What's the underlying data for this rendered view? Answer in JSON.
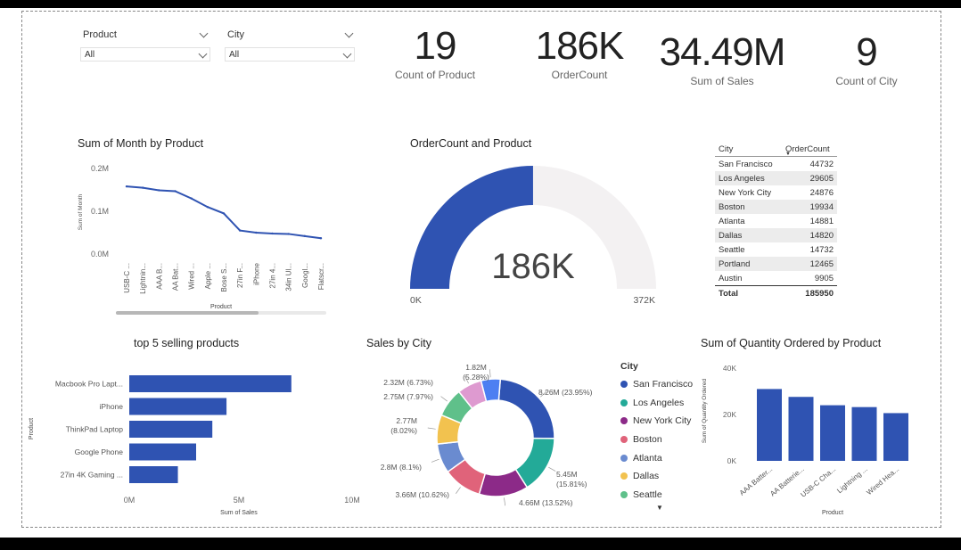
{
  "slicers": [
    {
      "title": "Product",
      "value": "All"
    },
    {
      "title": "City",
      "value": "All"
    }
  ],
  "kpis": [
    {
      "value": "19",
      "label": "Count of Product"
    },
    {
      "value": "186K",
      "label": "OrderCount"
    },
    {
      "value": "34.49M",
      "label": "Sum of Sales"
    },
    {
      "value": "9",
      "label": "Count of City"
    }
  ],
  "colors": {
    "primary": "#2f53b2",
    "gauge_track": "#f3f1f2"
  },
  "chart_data": [
    {
      "id": "month_by_product",
      "type": "line",
      "title": "Sum of Month by Product",
      "xlabel": "Product",
      "ylabel": "Sum of Month",
      "yticks": [
        "0.2M",
        "0.1M",
        "0.0M"
      ],
      "ylim": [
        0,
        200000
      ],
      "categories": [
        "USB-C ...",
        "Lightnin...",
        "AAA B...",
        "AA Bat...",
        "Wired ...",
        "Apple ...",
        "Bose S...",
        "27in F...",
        "iPhone",
        "27in 4...",
        "34in Ul...",
        "Googl...",
        "Flatscr..."
      ],
      "values": [
        158000,
        155000,
        149000,
        147000,
        130000,
        110000,
        95000,
        55000,
        50000,
        48000,
        47000,
        42000,
        37000
      ]
    },
    {
      "id": "ordercount_gauge",
      "type": "gauge",
      "title": "OrderCount and Product",
      "value": 185950,
      "value_label": "186K",
      "min": 0,
      "max": 372000,
      "min_label": "0K",
      "max_label": "372K"
    },
    {
      "id": "city_table",
      "type": "table",
      "columns": [
        "City",
        "OrderCount"
      ],
      "rows": [
        [
          "San Francisco",
          "44732"
        ],
        [
          "Los Angeles",
          "29605"
        ],
        [
          "New York City",
          "24876"
        ],
        [
          "Boston",
          "19934"
        ],
        [
          "Atlanta",
          "14881"
        ],
        [
          "Dallas",
          "14820"
        ],
        [
          "Seattle",
          "14732"
        ],
        [
          "Portland",
          "12465"
        ],
        [
          "Austin",
          "9905"
        ]
      ],
      "total_label": "Total",
      "total": "185950"
    },
    {
      "id": "top5",
      "type": "bar",
      "title": "top 5 selling products",
      "xlabel": "Sum of Sales",
      "ylabel": "Product",
      "categories": [
        "Macbook Pro Lapt...",
        "iPhone",
        "ThinkPad Laptop",
        "Google Phone",
        "27in 4K Gaming ..."
      ],
      "values": [
        8000000,
        4800000,
        4100000,
        3300000,
        2400000
      ],
      "xticks": [
        "0M",
        "5M",
        "10M"
      ],
      "xlim": [
        0,
        11000000
      ]
    },
    {
      "id": "sales_by_city",
      "type": "pie",
      "title": "Sales by City",
      "legend_title": "City",
      "legend": [
        "San Francisco",
        "Los Angeles",
        "New York City",
        "Boston",
        "Atlanta",
        "Dallas",
        "Seattle"
      ],
      "slices": [
        {
          "name": "San Francisco",
          "value": 8.26,
          "color": "#2f53b2",
          "l1": "8.26M (23.95%)",
          "l2": ""
        },
        {
          "name": "Los Angeles",
          "value": 5.45,
          "color": "#23aa98",
          "l1": "5.45M",
          "l2": "(15.81%)"
        },
        {
          "name": "New York City",
          "value": 4.66,
          "color": "#8c2a88",
          "l1": "4.66M (13.52%)",
          "l2": ""
        },
        {
          "name": "Boston",
          "value": 3.66,
          "color": "#e0637a",
          "l1": "3.66M (10.62%)",
          "l2": ""
        },
        {
          "name": "Atlanta",
          "value": 2.8,
          "color": "#6a8bd0",
          "l1": "2.8M (8.1%)",
          "l2": ""
        },
        {
          "name": "Dallas",
          "value": 2.77,
          "color": "#f2c24f",
          "l1": "2.77M",
          "l2": "(8.02%)"
        },
        {
          "name": "Seattle",
          "value": 2.75,
          "color": "#5fc08a",
          "l1": "2.75M (7.97%)",
          "l2": ""
        },
        {
          "name": "Portland",
          "value": 2.32,
          "color": "#de9ad0",
          "l1": "2.32M (6.73%)",
          "l2": ""
        },
        {
          "name": "Austin",
          "value": 1.82,
          "color": "#4d7ff2",
          "l1": "1.82M",
          "l2": "(5.28%)"
        }
      ]
    },
    {
      "id": "quantity_by_product",
      "type": "bar",
      "title": "Sum of Quantity Ordered by Product",
      "xlabel": "Product",
      "ylabel": "Sum of Quantity Ordered",
      "yticks": [
        "40K",
        "20K",
        "0K"
      ],
      "ylim": [
        0,
        40000
      ],
      "categories": [
        "AAA Batter...",
        "AA Batterie...",
        "USB-C Cha...",
        "Lightning ...",
        "Wired Hea..."
      ],
      "values": [
        31000,
        27600,
        24000,
        23200,
        20600
      ]
    }
  ]
}
